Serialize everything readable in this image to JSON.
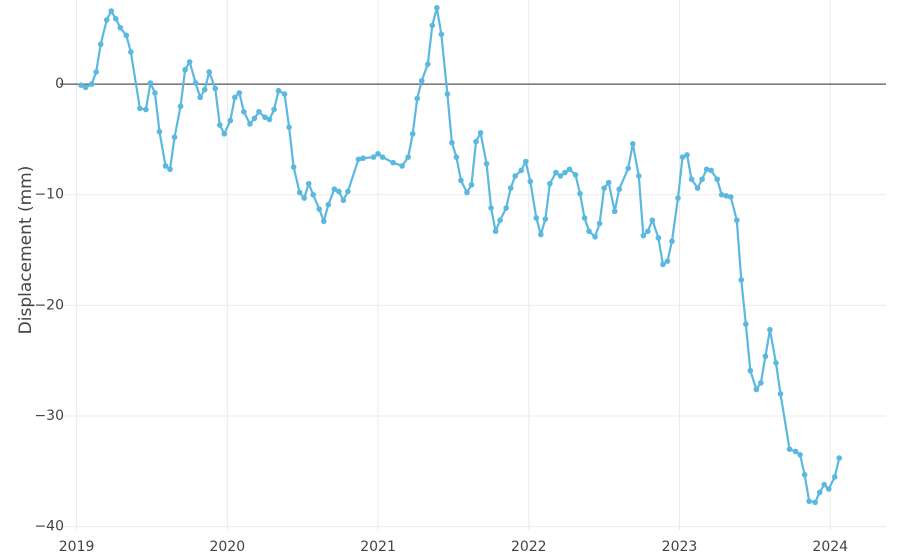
{
  "chart_data": {
    "type": "line",
    "title": "",
    "xlabel": "",
    "ylabel": "Displacement (mm)",
    "xlim": [
      2018.89,
      2024.37
    ],
    "ylim": [
      -40.3,
      7.6
    ],
    "x_ticks": [
      2019,
      2020,
      2021,
      2022,
      2023,
      2024
    ],
    "x_tick_labels": [
      "2019",
      "2020",
      "2021",
      "2022",
      "2023",
      "2024"
    ],
    "y_ticks": [
      -40,
      -30,
      -20,
      -10,
      0
    ],
    "y_tick_labels": [
      "−40",
      "−30",
      "−20",
      "−10",
      "0"
    ],
    "grid": true,
    "reference_line_y": 0,
    "colors": {
      "series": "#5bb8e0",
      "grid": "#ebebeb",
      "reference_line": "#555555",
      "text": "#444444"
    },
    "series": [
      {
        "x": [
          2019.03,
          2019.06,
          2019.1,
          2019.13,
          2019.16,
          2019.2,
          2019.23,
          2019.26,
          2019.29,
          2019.33,
          2019.36,
          2019.42,
          2019.46,
          2019.49,
          2019.52,
          2019.55,
          2019.59,
          2019.62,
          2019.65,
          2019.69,
          2019.72,
          2019.75,
          2019.79,
          2019.82,
          2019.85,
          2019.88,
          2019.92,
          2019.95,
          2019.98,
          2020.02,
          2020.05,
          2020.08,
          2020.11,
          2020.15,
          2020.18,
          2020.21,
          2020.25,
          2020.28,
          2020.31,
          2020.34,
          2020.38,
          2020.41,
          2020.44,
          2020.48,
          2020.51,
          2020.54,
          2020.57,
          2020.61,
          2020.64,
          2020.67,
          2020.71,
          2020.74,
          2020.77,
          2020.8,
          2020.87,
          2020.9,
          2020.97,
          2021.0,
          2021.03,
          2021.1,
          2021.16,
          2021.2,
          2021.23,
          2021.26,
          2021.29,
          2021.33,
          2021.36,
          2021.39,
          2021.42,
          2021.46,
          2021.49,
          2021.52,
          2021.55,
          2021.59,
          2021.62,
          2021.65,
          2021.68,
          2021.72,
          2021.75,
          2021.78,
          2021.81,
          2021.85,
          2021.88,
          2021.91,
          2021.95,
          2021.98,
          2022.01,
          2022.05,
          2022.08,
          2022.11,
          2022.14,
          2022.18,
          2022.21,
          2022.24,
          2022.27,
          2022.31,
          2022.34,
          2022.37,
          2022.4,
          2022.44,
          2022.47,
          2022.5,
          2022.53,
          2022.57,
          2022.6,
          2022.66,
          2022.69,
          2022.73,
          2022.76,
          2022.79,
          2022.82,
          2022.86,
          2022.89,
          2022.92,
          2022.95,
          2022.99,
          2023.02,
          2023.05,
          2023.08,
          2023.12,
          2023.15,
          2023.18,
          2023.21,
          2023.25,
          2023.28,
          2023.31,
          2023.34,
          2023.38,
          2023.41,
          2023.44,
          2023.47,
          2023.51,
          2023.54,
          2023.57,
          2023.6,
          2023.64,
          2023.67,
          2023.73,
          2023.77,
          2023.8,
          2023.83,
          2023.86,
          2023.9,
          2023.93,
          2023.96,
          2023.99,
          2024.03,
          2024.06
        ],
        "y": [
          -0.1,
          -0.3,
          0.0,
          1.1,
          3.6,
          5.8,
          6.6,
          5.9,
          5.1,
          4.4,
          2.9,
          -2.2,
          -2.3,
          0.1,
          -0.8,
          -4.3,
          -7.4,
          -7.7,
          -4.8,
          -2.0,
          1.3,
          2.0,
          0.1,
          -1.2,
          -0.5,
          1.1,
          -0.4,
          -3.7,
          -4.5,
          -3.3,
          -1.2,
          -0.8,
          -2.5,
          -3.6,
          -3.1,
          -2.5,
          -3.0,
          -3.2,
          -2.3,
          -0.6,
          -0.9,
          -3.9,
          -7.5,
          -9.8,
          -10.3,
          -9.0,
          -10.0,
          -11.3,
          -12.4,
          -10.9,
          -9.5,
          -9.7,
          -10.5,
          -9.7,
          -6.8,
          -6.7,
          -6.6,
          -6.3,
          -6.6,
          -7.1,
          -7.4,
          -6.6,
          -4.5,
          -1.3,
          0.3,
          1.8,
          5.3,
          6.9,
          4.5,
          -0.9,
          -5.3,
          -6.6,
          -8.7,
          -9.8,
          -9.1,
          -5.2,
          -4.4,
          -7.2,
          -11.2,
          -13.3,
          -12.3,
          -11.2,
          -9.4,
          -8.3,
          -7.8,
          -7.0,
          -8.8,
          -12.1,
          -13.6,
          -12.2,
          -9.0,
          -8.0,
          -8.3,
          -8.0,
          -7.7,
          -8.2,
          -9.9,
          -12.1,
          -13.3,
          -13.8,
          -12.6,
          -9.4,
          -8.9,
          -11.5,
          -9.5,
          -7.6,
          -5.4,
          -8.3,
          -13.7,
          -13.3,
          -12.3,
          -13.9,
          -16.3,
          -16.0,
          -14.2,
          -10.3,
          -6.6,
          -6.4,
          -8.6,
          -9.4,
          -8.6,
          -7.7,
          -7.8,
          -8.6,
          -10.0,
          -10.1,
          -10.2,
          -12.3,
          -17.7,
          -21.7,
          -25.9,
          -27.6,
          -27.0,
          -24.6,
          -22.2,
          -25.2,
          -28.0,
          -33.0,
          -33.2,
          -33.5,
          -35.3,
          -37.7,
          -37.8,
          -36.9,
          -36.2,
          -36.6,
          -35.5,
          -33.8
        ]
      }
    ]
  }
}
